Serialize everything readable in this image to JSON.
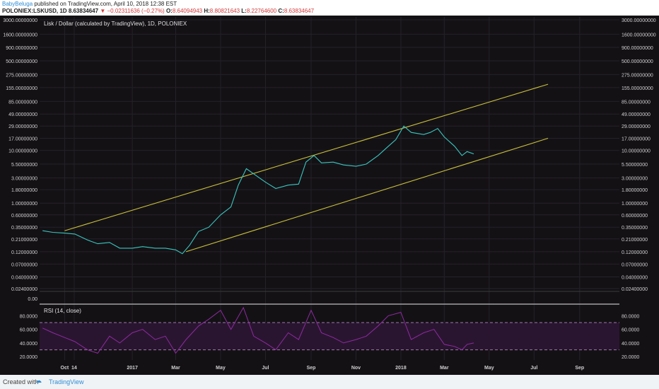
{
  "header": {
    "author": "BabyBeluga",
    "published": "published on TradingView.com, April 10, 2018 12:38 EST",
    "symbol": "POLONIEX:LSKUSD, 1D",
    "last": "8.63834647",
    "change": "−0.02311636 (−0.27%)",
    "o_label": "O:",
    "o": "8.64094943",
    "h_label": "H:",
    "h": "8.80821643",
    "l_label": "L:",
    "l": "8.22764600",
    "c_label": "C:",
    "c": "8.63834647"
  },
  "footer": {
    "created_with": "Created with",
    "brand": "TradingView"
  },
  "colors": {
    "background": "#141115",
    "grid": "#242129",
    "price": "#38c7bf",
    "channel": "#c8c13a",
    "rsi": "#8e2ba2",
    "rsi_band": "#2a1530",
    "rsi_level": "#9b7aa8",
    "axis_text": "#cfcfcf"
  },
  "chart_data": [
    {
      "type": "line",
      "title": "Lisk / Dollar (calculated by TradingView), 1D, POLONIEX",
      "yscale": "log",
      "y_ticks": [
        "3000.00000000",
        "1600.00000000",
        "900.00000000",
        "500.00000000",
        "275.00000000",
        "155.00000000",
        "85.00000000",
        "49.00000000",
        "29.00000000",
        "17.00000000",
        "10.00000000",
        "5.50000000",
        "3.00000000",
        "1.80000000",
        "1.00000000",
        "0.60000000",
        "0.35000000",
        "0.21000000",
        "0.12000000",
        "0.07000000",
        "0.04000000",
        "0.02400000"
      ],
      "x_ticks": [
        "Oct",
        "14",
        "2017",
        "Mar",
        "May",
        "Jul",
        "Sep",
        "Nov",
        "2018",
        "Mar",
        "May",
        "Jul",
        "Sep"
      ],
      "series": [
        {
          "values": [
            [
              "2016-09-01",
              0.3
            ],
            [
              "2016-09-15",
              0.28
            ],
            [
              "2016-10-01",
              0.27
            ],
            [
              "2016-10-15",
              0.26
            ],
            [
              "2016-11-01",
              0.2
            ],
            [
              "2016-11-15",
              0.17
            ],
            [
              "2016-12-01",
              0.18
            ],
            [
              "2016-12-15",
              0.14
            ],
            [
              "2017-01-01",
              0.14
            ],
            [
              "2017-01-15",
              0.15
            ],
            [
              "2017-02-01",
              0.14
            ],
            [
              "2017-02-15",
              0.14
            ],
            [
              "2017-03-01",
              0.13
            ],
            [
              "2017-03-10",
              0.11
            ],
            [
              "2017-03-20",
              0.16
            ],
            [
              "2017-04-01",
              0.29
            ],
            [
              "2017-04-15",
              0.35
            ],
            [
              "2017-05-01",
              0.6
            ],
            [
              "2017-05-15",
              0.85
            ],
            [
              "2017-05-25",
              2.2
            ],
            [
              "2017-06-05",
              4.5
            ],
            [
              "2017-06-15",
              3.6
            ],
            [
              "2017-07-01",
              2.5
            ],
            [
              "2017-07-15",
              1.9
            ],
            [
              "2017-08-01",
              2.2
            ],
            [
              "2017-08-15",
              2.3
            ],
            [
              "2017-08-25",
              6.0
            ],
            [
              "2017-09-05",
              8.0
            ],
            [
              "2017-09-15",
              5.8
            ],
            [
              "2017-10-01",
              6.0
            ],
            [
              "2017-10-15",
              5.3
            ],
            [
              "2017-11-01",
              5.0
            ],
            [
              "2017-11-15",
              5.5
            ],
            [
              "2017-12-01",
              8.0
            ],
            [
              "2017-12-15",
              12.0
            ],
            [
              "2017-12-25",
              16.0
            ],
            [
              "2018-01-05",
              29.0
            ],
            [
              "2018-01-15",
              22.0
            ],
            [
              "2018-02-01",
              20.0
            ],
            [
              "2018-02-10",
              22.0
            ],
            [
              "2018-02-20",
              26.0
            ],
            [
              "2018-03-01",
              18.0
            ],
            [
              "2018-03-15",
              12.0
            ],
            [
              "2018-03-25",
              8.0
            ],
            [
              "2018-04-01",
              9.5
            ],
            [
              "2018-04-10",
              8.6
            ]
          ]
        }
      ],
      "channel": {
        "upper": [
          [
            "2016-10-01",
            0.3
          ],
          [
            "2018-07-20",
            180.0
          ]
        ],
        "lower": [
          [
            "2017-03-15",
            0.12
          ],
          [
            "2018-07-20",
            17.0
          ]
        ]
      }
    },
    {
      "type": "line",
      "title": "RSI (14, close)",
      "ylim": [
        15,
        95
      ],
      "y_ticks": [
        "80.0000",
        "60.0000",
        "40.0000",
        "20.0000"
      ],
      "levels": [
        70,
        30
      ],
      "series": [
        {
          "values": [
            [
              "2016-09-01",
              62
            ],
            [
              "2016-09-15",
              55
            ],
            [
              "2016-10-01",
              48
            ],
            [
              "2016-10-15",
              42
            ],
            [
              "2016-11-01",
              30
            ],
            [
              "2016-11-15",
              25
            ],
            [
              "2016-12-01",
              50
            ],
            [
              "2016-12-15",
              40
            ],
            [
              "2017-01-01",
              55
            ],
            [
              "2017-01-15",
              60
            ],
            [
              "2017-02-01",
              45
            ],
            [
              "2017-02-15",
              50
            ],
            [
              "2017-03-01",
              25
            ],
            [
              "2017-03-15",
              45
            ],
            [
              "2017-04-01",
              65
            ],
            [
              "2017-04-15",
              75
            ],
            [
              "2017-05-01",
              88
            ],
            [
              "2017-05-15",
              60
            ],
            [
              "2017-06-01",
              92
            ],
            [
              "2017-06-15",
              50
            ],
            [
              "2017-07-01",
              40
            ],
            [
              "2017-07-15",
              30
            ],
            [
              "2017-08-01",
              55
            ],
            [
              "2017-08-15",
              45
            ],
            [
              "2017-09-01",
              88
            ],
            [
              "2017-09-15",
              55
            ],
            [
              "2017-10-01",
              48
            ],
            [
              "2017-10-15",
              40
            ],
            [
              "2017-11-01",
              45
            ],
            [
              "2017-11-15",
              50
            ],
            [
              "2017-12-01",
              65
            ],
            [
              "2017-12-15",
              80
            ],
            [
              "2018-01-01",
              85
            ],
            [
              "2018-01-15",
              45
            ],
            [
              "2018-02-01",
              55
            ],
            [
              "2018-02-15",
              60
            ],
            [
              "2018-03-01",
              38
            ],
            [
              "2018-03-15",
              35
            ],
            [
              "2018-03-25",
              30
            ],
            [
              "2018-04-01",
              38
            ],
            [
              "2018-04-10",
              40
            ]
          ]
        }
      ],
      "zero_label": "0.00"
    }
  ]
}
